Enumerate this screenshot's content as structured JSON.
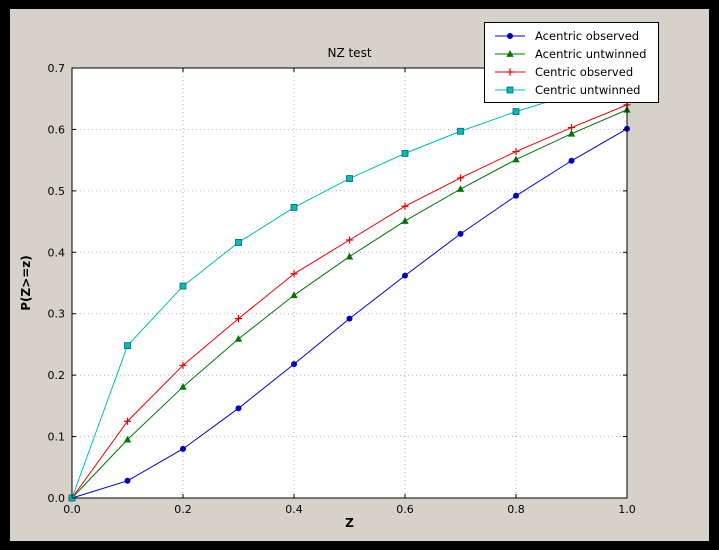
{
  "figure": {
    "title": "NZ test",
    "xlabel": "Z",
    "ylabel": "P(Z>=z)",
    "bg_outer": "#000000",
    "bg_figure": "#d6d2ca",
    "bg_axes": "#ffffff",
    "grid_color": "#999999",
    "axis_color": "#000000"
  },
  "chart_data": {
    "type": "line",
    "title": "NZ test",
    "xlabel": "Z",
    "ylabel": "P(Z>=z)",
    "xlim": [
      0.0,
      1.0
    ],
    "ylim": [
      0.0,
      0.7
    ],
    "xticks": [
      0.0,
      0.2,
      0.4,
      0.6,
      0.8,
      1.0
    ],
    "yticks": [
      0.0,
      0.1,
      0.2,
      0.3,
      0.4,
      0.5,
      0.6,
      0.7
    ],
    "grid": true,
    "legend_position": "upper right",
    "x": [
      0.0,
      0.1,
      0.2,
      0.3,
      0.4,
      0.5,
      0.6,
      0.7,
      0.8,
      0.9,
      1.0
    ],
    "series": [
      {
        "name": "Acentric observed",
        "color": "#0000cc",
        "marker": "circle",
        "values": [
          0.0,
          0.028,
          0.08,
          0.146,
          0.218,
          0.292,
          0.362,
          0.43,
          0.492,
          0.549,
          0.601
        ]
      },
      {
        "name": "Acentric untwinned",
        "color": "#007700",
        "marker": "triangle",
        "values": [
          0.0,
          0.095,
          0.181,
          0.259,
          0.33,
          0.393,
          0.451,
          0.503,
          0.551,
          0.593,
          0.632
        ]
      },
      {
        "name": "Centric observed",
        "color": "#ee0000",
        "marker": "plus",
        "values": [
          0.0,
          0.125,
          0.216,
          0.292,
          0.365,
          0.42,
          0.475,
          0.521,
          0.564,
          0.603,
          0.64
        ]
      },
      {
        "name": "Centric untwinned",
        "color": "#00bcbc",
        "marker": "square",
        "values": [
          0.0,
          0.248,
          0.345,
          0.416,
          0.473,
          0.52,
          0.561,
          0.597,
          0.629,
          0.657,
          0.683
        ]
      }
    ]
  }
}
